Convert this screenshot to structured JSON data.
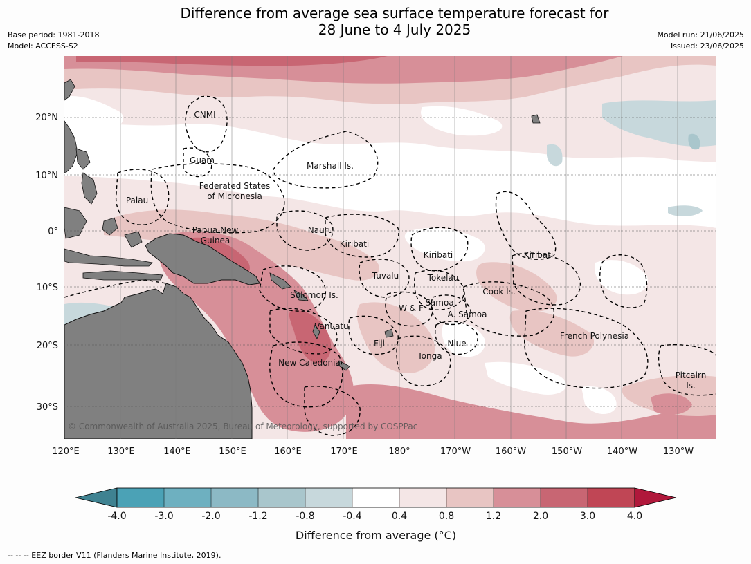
{
  "header": {
    "title_line1": "Difference from average sea surface temperature forecast for",
    "title_line2": "28 June to 4 July 2025",
    "base_period": "Base period: 1981-2018",
    "model": "Model: ACCESS-S2",
    "model_run": "Model run: 21/06/2025",
    "issued": "Issued: 23/06/2025"
  },
  "map": {
    "lon_labels": [
      "120°E",
      "130°E",
      "140°E",
      "150°E",
      "160°E",
      "170°E",
      "180°",
      "170°W",
      "160°W",
      "150°W",
      "140°W",
      "130°W"
    ],
    "lat_labels": [
      "20°N",
      "10°N",
      "0°",
      "10°S",
      "20°S",
      "30°S"
    ],
    "eez_labels": [
      "CNMI",
      "Guam",
      "Marshall Is.",
      "Palau",
      "Federated States",
      "of Micronesia",
      "Papua New",
      "Guinea",
      "Nauru",
      "Kiribati",
      "Kiribati",
      "Kiribati",
      "Tuvalu",
      "Tokelau",
      "Solomon Is.",
      "Samoa",
      "W & F",
      "A. Samoa",
      "Cook Is.",
      "Vanuatu",
      "Fiji",
      "Niue",
      "Tonga",
      "French Polynesia",
      "New Caledonia",
      "Pitcairn",
      "Is."
    ],
    "copyright": "© Commonwealth of Australia 2025, Bureau of Meteorology, supported by COSPPac",
    "land_color": "#808080"
  },
  "colorbar": {
    "colors": [
      "#3f8291",
      "#4ba2b6",
      "#6eb0c0",
      "#8cb9c5",
      "#a9c6cc",
      "#c7d8dc",
      "#ffffff",
      "#f4e6e6",
      "#e8c5c3",
      "#d78f98",
      "#c86673",
      "#c04655",
      "#b0183b"
    ],
    "tick_labels": [
      "-4.0",
      "-3.0",
      "-2.0",
      "-1.2",
      "-0.8",
      "-0.4",
      "0.4",
      "0.8",
      "1.2",
      "2.0",
      "3.0",
      "4.0"
    ],
    "label": "Difference from average (°C)"
  },
  "footer": {
    "eez_note": "--  --  -- EEZ border V11 (Flanders Marine Institute, 2019)."
  }
}
